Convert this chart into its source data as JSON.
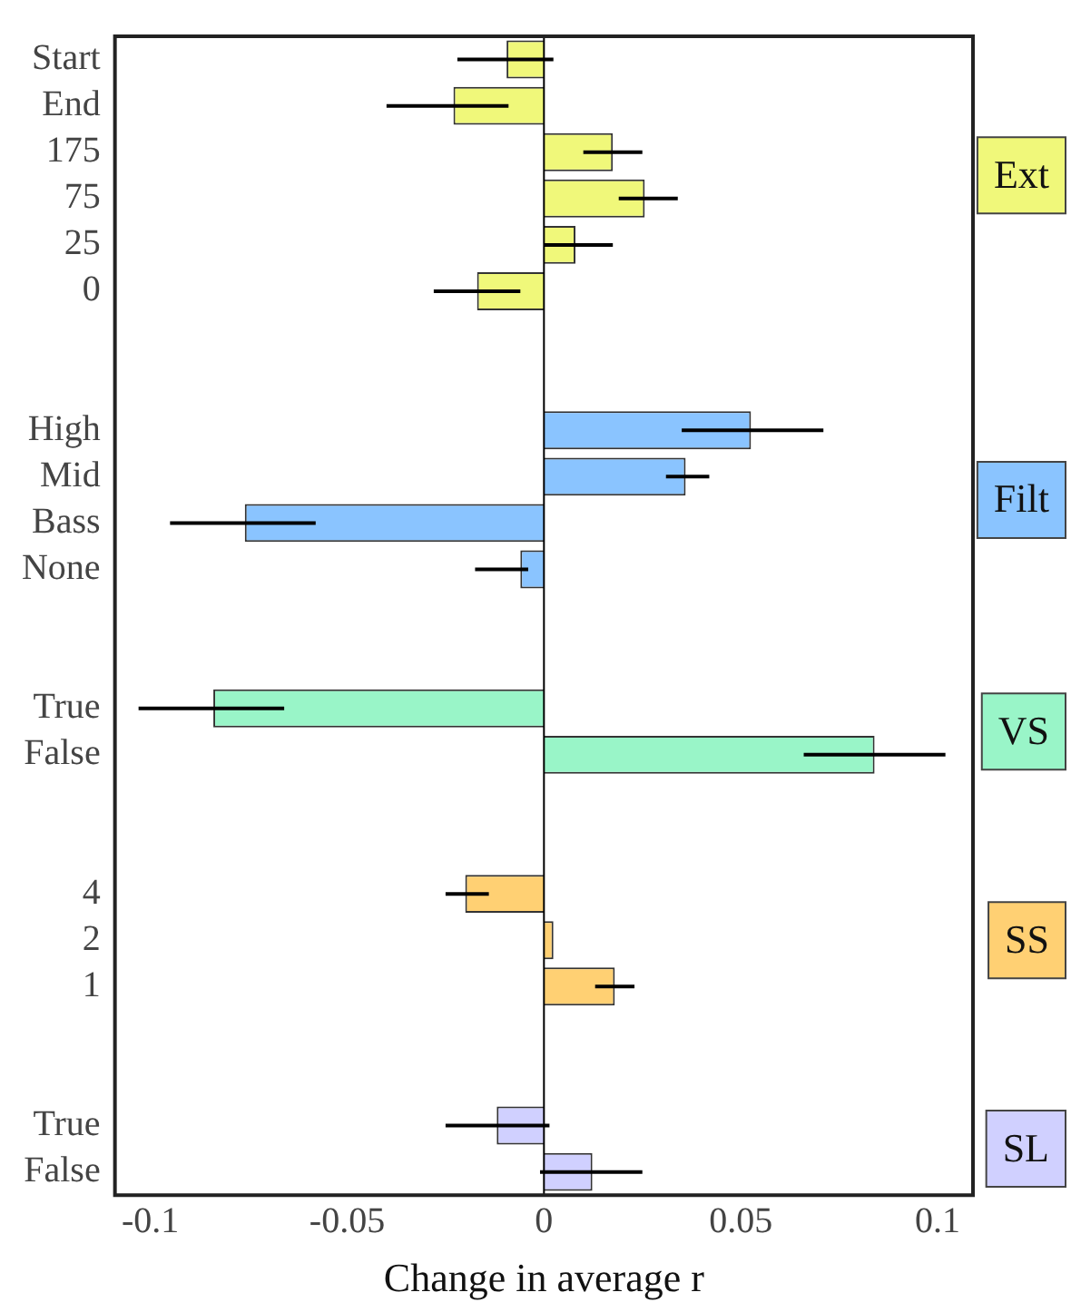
{
  "chart_data": {
    "type": "bar",
    "orientation": "horizontal",
    "xlabel": "Change in average r",
    "categories": [
      "Start",
      "End",
      "175",
      "75",
      "25",
      "0",
      null,
      null,
      "High",
      "Mid",
      "Bass",
      "None",
      null,
      null,
      "True",
      "False",
      null,
      null,
      "4",
      "2",
      "1",
      null,
      null,
      "True",
      "False"
    ],
    "series": [
      {
        "name": "Ext",
        "color": "#f0f87a",
        "values": [
          -0.0095,
          -0.023,
          0.0175,
          0.0256,
          0.008,
          -0.017,
          null,
          null,
          null,
          null,
          null,
          null,
          null,
          null,
          null,
          null,
          null,
          null,
          null,
          null,
          null,
          null,
          null,
          null,
          null
        ],
        "errors": [
          [
            -0.022,
            0.0024
          ],
          [
            -0.04,
            -0.009
          ],
          [
            0.01,
            0.025
          ],
          [
            0.019,
            0.034
          ],
          [
            0,
            0.0175
          ],
          [
            -0.028,
            -0.006
          ],
          null,
          null,
          null,
          null,
          null,
          null,
          null,
          null,
          null,
          null,
          null,
          null,
          null,
          null,
          null,
          null,
          null,
          null,
          null
        ]
      },
      {
        "name": "Filt",
        "color": "#8ac4ff",
        "values": [
          null,
          null,
          null,
          null,
          null,
          null,
          null,
          null,
          0.0526,
          0.036,
          -0.076,
          -0.006,
          null,
          null,
          null,
          null,
          null,
          null,
          null,
          null,
          null,
          null,
          null,
          null,
          null
        ],
        "errors": [
          null,
          null,
          null,
          null,
          null,
          null,
          null,
          null,
          [
            0.035,
            0.071
          ],
          [
            0.031,
            0.042
          ],
          [
            -0.095,
            -0.058
          ],
          [
            -0.0175,
            -0.004
          ],
          null,
          null,
          null,
          null,
          null,
          null,
          null,
          null,
          null,
          null,
          null,
          null,
          null
        ]
      },
      {
        "name": "VS",
        "color": "#99f5c8",
        "values": [
          null,
          null,
          null,
          null,
          null,
          null,
          null,
          null,
          null,
          null,
          null,
          null,
          null,
          null,
          -0.084,
          0.084,
          null,
          null,
          null,
          null,
          null,
          null,
          null,
          null,
          null
        ],
        "errors": [
          null,
          null,
          null,
          null,
          null,
          null,
          null,
          null,
          null,
          null,
          null,
          null,
          null,
          null,
          [
            -0.103,
            -0.066
          ],
          [
            0.066,
            0.102
          ],
          null,
          null,
          null,
          null,
          null,
          null,
          null,
          null,
          null
        ]
      },
      {
        "name": "SS",
        "color": "#ffd073",
        "values": [
          null,
          null,
          null,
          null,
          null,
          null,
          null,
          null,
          null,
          null,
          null,
          null,
          null,
          null,
          null,
          null,
          null,
          null,
          -0.02,
          0.0024,
          0.018,
          null,
          null,
          null,
          null
        ],
        "errors": [
          null,
          null,
          null,
          null,
          null,
          null,
          null,
          null,
          null,
          null,
          null,
          null,
          null,
          null,
          null,
          null,
          null,
          null,
          [
            -0.025,
            -0.014
          ],
          null,
          [
            0.013,
            0.023
          ],
          null,
          null,
          null,
          null
        ]
      },
      {
        "name": "SL",
        "color": "#d0d0ff",
        "values": [
          null,
          null,
          null,
          null,
          null,
          null,
          null,
          null,
          null,
          null,
          null,
          null,
          null,
          null,
          null,
          null,
          null,
          null,
          null,
          null,
          null,
          null,
          null,
          -0.012,
          0.0123
        ],
        "errors": [
          null,
          null,
          null,
          null,
          null,
          null,
          null,
          null,
          null,
          null,
          null,
          null,
          null,
          null,
          null,
          null,
          null,
          null,
          null,
          null,
          null,
          null,
          null,
          [
            -0.025,
            0.0014
          ],
          [
            -0.001,
            0.025
          ]
        ]
      }
    ],
    "xlim": [
      -0.109,
      0.109
    ],
    "xticks": [
      -0.1,
      -0.05,
      0,
      0.05,
      0.1
    ],
    "ref_lines": [
      {
        "axis": "x",
        "value": 0
      }
    ],
    "grid": false,
    "legend": false
  }
}
